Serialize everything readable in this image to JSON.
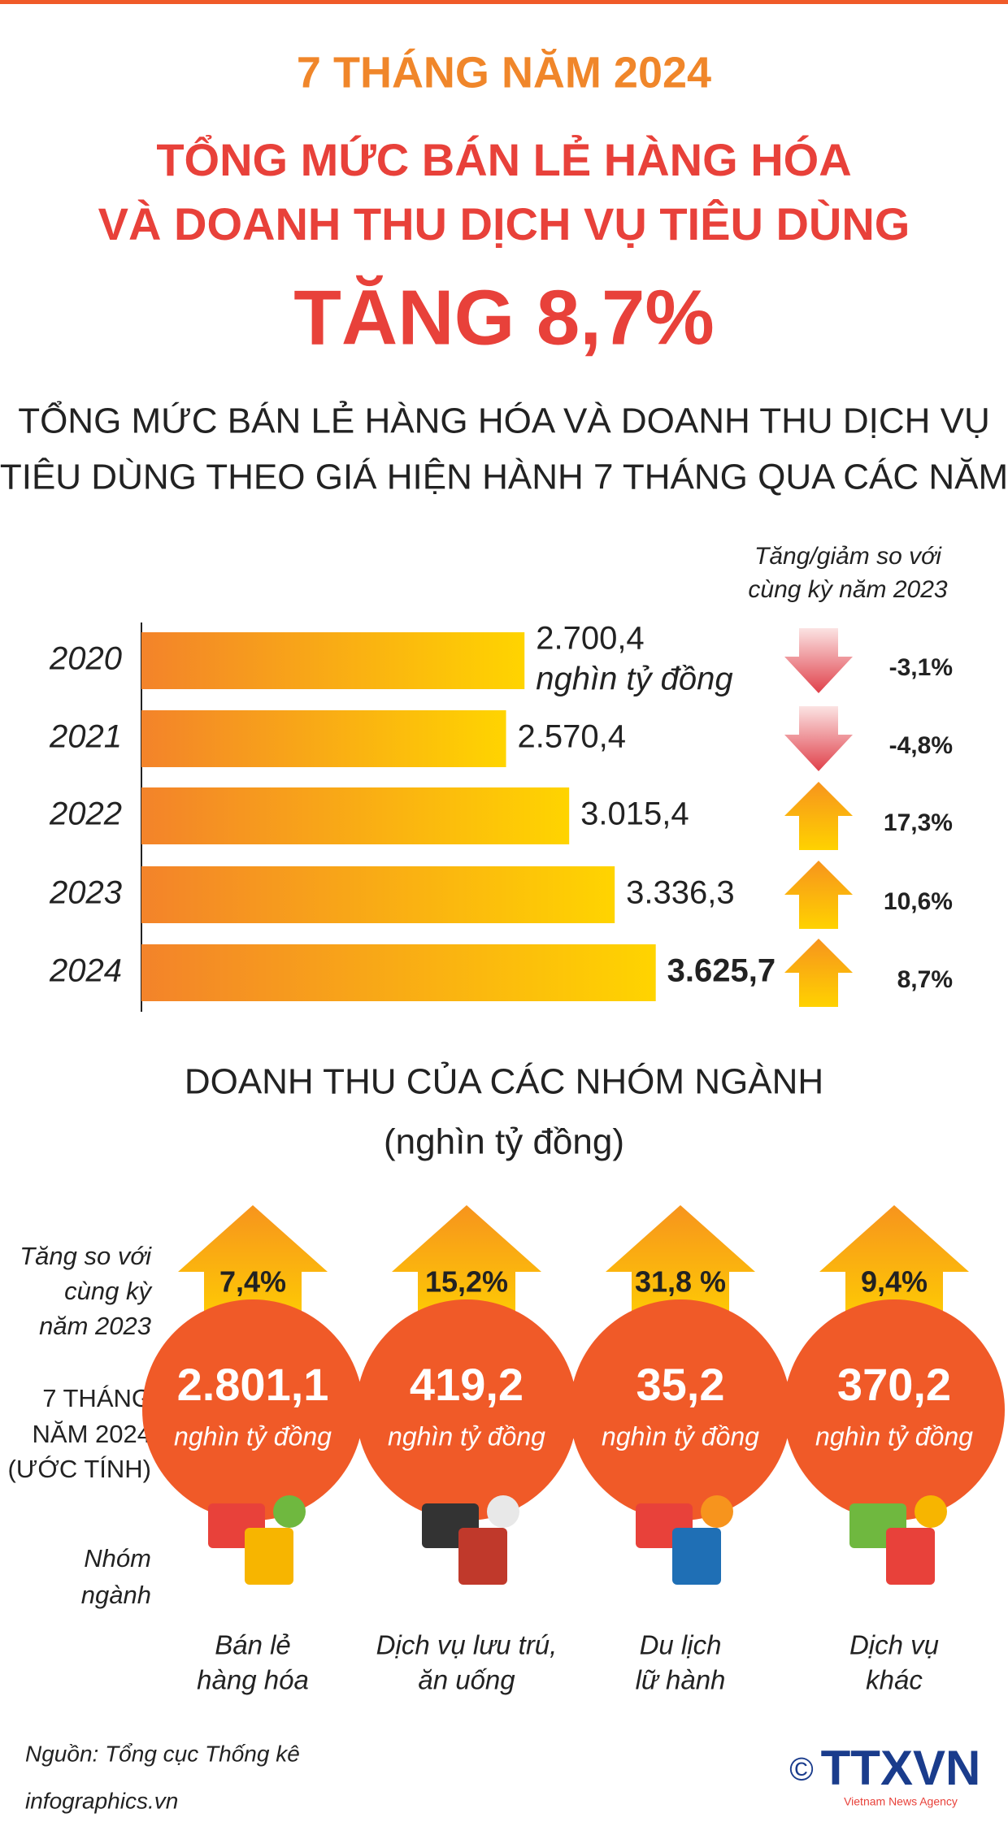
{
  "header": {
    "kicker": "7 THÁNG NĂM 2024",
    "title_lines": [
      "TỔNG MỨC BÁN LẺ HÀNG HÓA",
      "VÀ DOANH THU DỊCH VỤ TIÊU DÙNG"
    ],
    "headline": "TĂNG 8,7%"
  },
  "chart_data": {
    "type": "bar",
    "orientation": "horizontal",
    "title_lines": [
      "TỔNG MỨC BÁN LẺ HÀNG HÓA VÀ DOANH THU DỊCH VỤ",
      "TIÊU DÙNG THEO GIÁ HIỆN HÀNH 7 THÁNG QUA CÁC NĂM"
    ],
    "categories": [
      "2020",
      "2021",
      "2022",
      "2023",
      "2024"
    ],
    "values": [
      2700.4,
      2570.4,
      3015.4,
      3336.3,
      3625.7
    ],
    "value_labels": [
      "2.700,4",
      "2.570,4",
      "3.015,4",
      "3.336,3",
      "3.625,7"
    ],
    "unit": "nghìn tỷ đồng",
    "xlim": [
      0,
      4000
    ],
    "color_start": "#f3832a",
    "color_end": "#ffd400",
    "change_title_lines": [
      "Tăng/giảm so với",
      "cùng kỳ năm 2023"
    ],
    "changes": [
      -3.1,
      -4.8,
      17.3,
      10.6,
      8.7
    ],
    "change_labels": [
      "-3,1%",
      "-4,8%",
      "17,3%",
      "10,6%",
      "8,7%"
    ]
  },
  "groups_section": {
    "title": "DOANH THU CỦA CÁC NHÓM NGÀNH",
    "subtitle": "(nghìn tỷ đồng)",
    "growth_caption_lines": [
      "Tăng so với",
      "cùng kỳ",
      "năm 2023"
    ],
    "revenue_caption_lines": [
      "7 THÁNG",
      "NĂM 2024",
      "(ƯỚC TÍNH)"
    ],
    "group_caption_lines": [
      "Nhóm",
      "ngành"
    ],
    "unit": "nghìn tỷ đồng",
    "groups": [
      {
        "name_lines": [
          "Bán lẻ",
          "hàng hóa"
        ],
        "growth": 7.4,
        "growth_label": "7,4%",
        "revenue": 2801.1,
        "revenue_label": "2.801,1"
      },
      {
        "name_lines": [
          "Dịch vụ lưu trú,",
          "ăn uống"
        ],
        "growth": 15.2,
        "growth_label": "15,2%",
        "revenue": 419.2,
        "revenue_label": "419,2"
      },
      {
        "name_lines": [
          "Du lịch",
          "lữ hành"
        ],
        "growth": 31.8,
        "growth_label": "31,8 %",
        "revenue": 35.2,
        "revenue_label": "35,2"
      },
      {
        "name_lines": [
          "Dịch vụ",
          "khác"
        ],
        "growth": 9.4,
        "growth_label": "9,4%",
        "revenue": 370.2,
        "revenue_label": "370,2"
      }
    ]
  },
  "footer": {
    "source": "Nguồn: Tổng cục Thống kê",
    "site": "infographics.vn",
    "logo": "TTXVN",
    "logo_sub": "Vietnam News Agency",
    "copyright": "©"
  }
}
